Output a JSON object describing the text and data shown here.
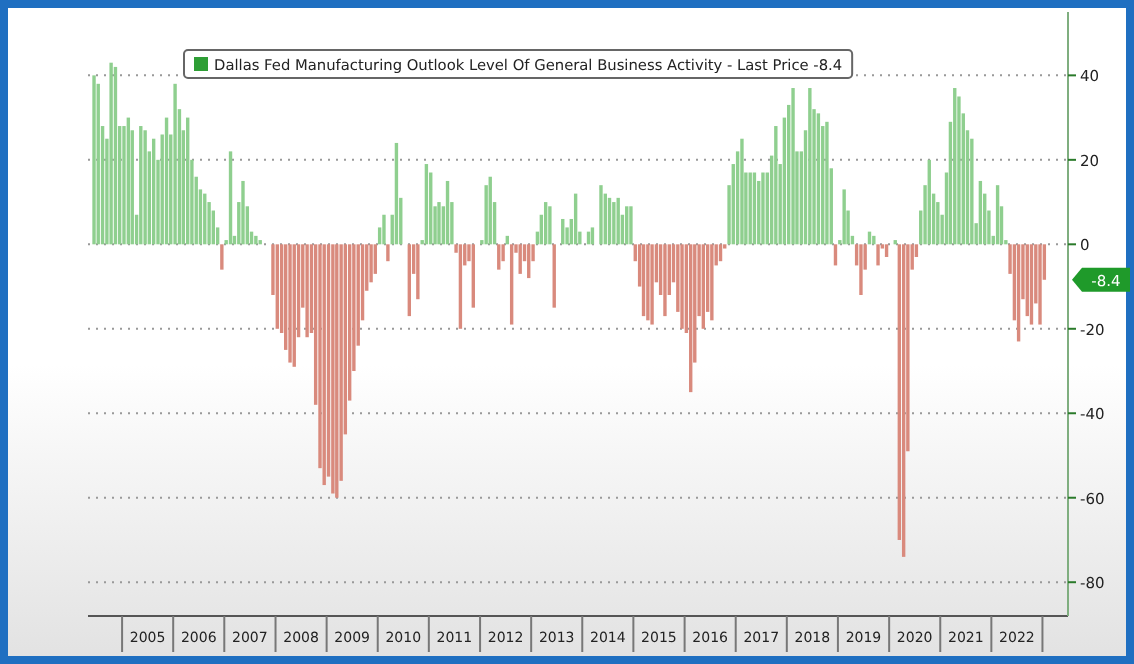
{
  "chart_data": {
    "type": "bar",
    "legend": "top",
    "grid": "y",
    "x": [
      "2004-06",
      "2004-07",
      "2004-08",
      "2004-09",
      "2004-10",
      "2004-11",
      "2004-12",
      "2005-01",
      "2005-02",
      "2005-03",
      "2005-04",
      "2005-05",
      "2005-06",
      "2005-07",
      "2005-08",
      "2005-09",
      "2005-10",
      "2005-11",
      "2005-12",
      "2006-01",
      "2006-02",
      "2006-03",
      "2006-04",
      "2006-05",
      "2006-06",
      "2006-07",
      "2006-08",
      "2006-09",
      "2006-10",
      "2006-11",
      "2006-12",
      "2007-01",
      "2007-02",
      "2007-03",
      "2007-04",
      "2007-05",
      "2007-06",
      "2007-07",
      "2007-08",
      "2007-09",
      "2007-10",
      "2007-11",
      "2007-12",
      "2008-01",
      "2008-02",
      "2008-03",
      "2008-04",
      "2008-05",
      "2008-06",
      "2008-07",
      "2008-08",
      "2008-09",
      "2008-10",
      "2008-11",
      "2008-12",
      "2009-01",
      "2009-02",
      "2009-03",
      "2009-04",
      "2009-05",
      "2009-06",
      "2009-07",
      "2009-08",
      "2009-09",
      "2009-10",
      "2009-11",
      "2009-12",
      "2010-01",
      "2010-02",
      "2010-03",
      "2010-04",
      "2010-05",
      "2010-06",
      "2010-07",
      "2010-08",
      "2010-09",
      "2010-10",
      "2010-11",
      "2010-12",
      "2011-01",
      "2011-02",
      "2011-03",
      "2011-04",
      "2011-05",
      "2011-06",
      "2011-07",
      "2011-08",
      "2011-09",
      "2011-10",
      "2011-11",
      "2011-12",
      "2012-01",
      "2012-02",
      "2012-03",
      "2012-04",
      "2012-05",
      "2012-06",
      "2012-07",
      "2012-08",
      "2012-09",
      "2012-10",
      "2012-11",
      "2012-12",
      "2013-01",
      "2013-02",
      "2013-03",
      "2013-04",
      "2013-05",
      "2013-06",
      "2013-07",
      "2013-08",
      "2013-09",
      "2013-10",
      "2013-11",
      "2013-12",
      "2014-01",
      "2014-02",
      "2014-03",
      "2014-04",
      "2014-05",
      "2014-06",
      "2014-07",
      "2014-08",
      "2014-09",
      "2014-10",
      "2014-11",
      "2014-12",
      "2015-01",
      "2015-02",
      "2015-03",
      "2015-04",
      "2015-05",
      "2015-06",
      "2015-07",
      "2015-08",
      "2015-09",
      "2015-10",
      "2015-11",
      "2015-12",
      "2016-01",
      "2016-02",
      "2016-03",
      "2016-04",
      "2016-05",
      "2016-06",
      "2016-07",
      "2016-08",
      "2016-09",
      "2016-10",
      "2016-11",
      "2016-12",
      "2017-01",
      "2017-02",
      "2017-03",
      "2017-04",
      "2017-05",
      "2017-06",
      "2017-07",
      "2017-08",
      "2017-09",
      "2017-10",
      "2017-11",
      "2017-12",
      "2018-01",
      "2018-02",
      "2018-03",
      "2018-04",
      "2018-05",
      "2018-06",
      "2018-07",
      "2018-08",
      "2018-09",
      "2018-10",
      "2018-11",
      "2018-12",
      "2019-01",
      "2019-02",
      "2019-03",
      "2019-04",
      "2019-05",
      "2019-06",
      "2019-07",
      "2019-08",
      "2019-09",
      "2019-10",
      "2019-11",
      "2019-12",
      "2020-01",
      "2020-02",
      "2020-03",
      "2020-04",
      "2020-05",
      "2020-06",
      "2020-07",
      "2020-08",
      "2020-09",
      "2020-10",
      "2020-11",
      "2020-12",
      "2021-01",
      "2021-02",
      "2021-03",
      "2021-04",
      "2021-05",
      "2021-06",
      "2021-07",
      "2021-08",
      "2021-09",
      "2021-10",
      "2021-11",
      "2021-12",
      "2022-01",
      "2022-02",
      "2022-03",
      "2022-04",
      "2022-05",
      "2022-06",
      "2022-07",
      "2022-08",
      "2022-09",
      "2022-10",
      "2022-11",
      "2022-12",
      "2023-01"
    ],
    "series": [
      {
        "name": "Dallas Fed Manufacturing Outlook Level Of General Business Activity - Last Price -8.4",
        "color": "#2e9e35",
        "values": [
          40,
          38,
          28,
          25,
          43,
          42,
          28,
          28,
          30,
          27,
          7,
          28,
          27,
          22,
          25,
          20,
          26,
          30,
          26,
          38,
          32,
          27,
          30,
          20,
          16,
          13,
          12,
          10,
          8,
          4,
          -6,
          1,
          22,
          2,
          10,
          15,
          9,
          3,
          2,
          1,
          0,
          0,
          -12,
          -20,
          -21,
          -25,
          -28,
          -29,
          -22,
          -15,
          -22,
          -21,
          -38,
          -53,
          -57,
          -55,
          -59,
          -60,
          -56,
          -45,
          -37,
          -30,
          -24,
          -18,
          -11,
          -9,
          -7,
          4,
          7,
          -4,
          7,
          24,
          11,
          0,
          -17,
          -7,
          -13,
          1,
          19,
          17,
          9,
          10,
          9,
          15,
          10,
          -2,
          -20,
          -5,
          -4,
          -15,
          0,
          1,
          14,
          16,
          10,
          -6,
          -4,
          2,
          -19,
          -2,
          -7,
          -4,
          -8,
          -4,
          3,
          7,
          10,
          9,
          -15,
          0,
          6,
          4,
          6,
          12,
          3,
          0,
          3,
          4,
          0,
          14,
          12,
          11,
          10,
          11,
          7,
          9,
          9,
          -4,
          -10,
          -17,
          -18,
          -19,
          -9,
          -12,
          -17,
          -12,
          -9,
          -16,
          -20,
          -21,
          -35,
          -28,
          -17,
          -20,
          -16,
          -18,
          -5,
          -4,
          -1,
          14,
          19,
          22,
          25,
          17,
          17,
          17,
          15,
          17,
          17,
          21,
          28,
          19,
          30,
          33,
          37,
          22,
          22,
          27,
          37,
          32,
          31,
          28,
          29,
          18,
          -5,
          1,
          13,
          8,
          2,
          -5,
          -12,
          -6,
          3,
          2,
          -5,
          -1,
          -3,
          0,
          1,
          -70,
          -74,
          -49,
          -6,
          -3,
          8,
          14,
          20,
          12,
          10,
          7,
          17,
          29,
          37,
          35,
          31,
          27,
          25,
          5,
          15,
          12,
          8,
          2,
          14,
          9,
          1,
          -7,
          -18,
          -23,
          -13,
          -17,
          -19,
          -14,
          -19,
          -8.4
        ],
        "colors": [
          "#8fcf8f",
          "#8fcf8f",
          "#8fcf8f",
          "#8fcf8f",
          "#8fcf8f",
          "#8fcf8f",
          "#8fcf8f",
          "#8fcf8f",
          "#8fcf8f",
          "#8fcf8f",
          "#8fcf8f",
          "#8fcf8f",
          "#8fcf8f",
          "#8fcf8f",
          "#8fcf8f",
          "#8fcf8f",
          "#8fcf8f",
          "#8fcf8f",
          "#8fcf8f",
          "#8fcf8f",
          "#8fcf8f",
          "#8fcf8f",
          "#8fcf8f",
          "#8fcf8f",
          "#8fcf8f",
          "#8fcf8f",
          "#8fcf8f",
          "#8fcf8f",
          "#8fcf8f",
          "#8fcf8f",
          "#d98a7d",
          "#8fcf8f",
          "#8fcf8f",
          "#8fcf8f",
          "#8fcf8f",
          "#8fcf8f",
          "#8fcf8f",
          "#8fcf8f",
          "#8fcf8f",
          "#8fcf8f",
          "#8fcf8f",
          "#8fcf8f",
          "#d98a7d",
          "#d98a7d",
          "#d98a7d",
          "#d98a7d",
          "#d98a7d",
          "#d98a7d",
          "#d98a7d",
          "#d98a7d",
          "#d98a7d",
          "#d98a7d",
          "#d98a7d",
          "#d98a7d",
          "#d98a7d",
          "#d98a7d",
          "#d98a7d",
          "#d98a7d",
          "#d98a7d",
          "#d98a7d",
          "#d98a7d",
          "#d98a7d",
          "#d98a7d",
          "#d98a7d",
          "#d98a7d",
          "#d98a7d",
          "#d98a7d",
          "#8fcf8f",
          "#8fcf8f",
          "#d98a7d",
          "#8fcf8f",
          "#8fcf8f",
          "#8fcf8f",
          "#8fcf8f",
          "#d98a7d",
          "#d98a7d",
          "#d98a7d",
          "#8fcf8f",
          "#8fcf8f",
          "#8fcf8f",
          "#8fcf8f",
          "#8fcf8f",
          "#8fcf8f",
          "#8fcf8f",
          "#8fcf8f",
          "#d98a7d",
          "#d98a7d",
          "#d98a7d",
          "#d98a7d",
          "#d98a7d",
          "#8fcf8f",
          "#8fcf8f",
          "#8fcf8f",
          "#8fcf8f",
          "#8fcf8f",
          "#d98a7d",
          "#d98a7d",
          "#8fcf8f",
          "#d98a7d",
          "#d98a7d",
          "#d98a7d",
          "#d98a7d",
          "#d98a7d",
          "#d98a7d",
          "#8fcf8f",
          "#8fcf8f",
          "#8fcf8f",
          "#8fcf8f",
          "#d98a7d",
          "#8fcf8f",
          "#8fcf8f",
          "#8fcf8f",
          "#8fcf8f",
          "#8fcf8f",
          "#8fcf8f",
          "#8fcf8f",
          "#8fcf8f",
          "#8fcf8f",
          "#8fcf8f",
          "#8fcf8f",
          "#8fcf8f",
          "#8fcf8f",
          "#8fcf8f",
          "#8fcf8f",
          "#8fcf8f",
          "#8fcf8f",
          "#8fcf8f",
          "#d98a7d",
          "#d98a7d",
          "#d98a7d",
          "#d98a7d",
          "#d98a7d",
          "#d98a7d",
          "#d98a7d",
          "#d98a7d",
          "#d98a7d",
          "#d98a7d",
          "#d98a7d",
          "#d98a7d",
          "#d98a7d",
          "#d98a7d",
          "#d98a7d",
          "#d98a7d",
          "#d98a7d",
          "#d98a7d",
          "#d98a7d",
          "#d98a7d",
          "#d98a7d",
          "#d98a7d",
          "#8fcf8f",
          "#8fcf8f",
          "#8fcf8f",
          "#8fcf8f",
          "#8fcf8f",
          "#8fcf8f",
          "#8fcf8f",
          "#8fcf8f",
          "#8fcf8f",
          "#8fcf8f",
          "#8fcf8f",
          "#8fcf8f",
          "#8fcf8f",
          "#8fcf8f",
          "#8fcf8f",
          "#8fcf8f",
          "#8fcf8f",
          "#8fcf8f",
          "#8fcf8f",
          "#8fcf8f",
          "#8fcf8f",
          "#8fcf8f",
          "#8fcf8f",
          "#8fcf8f",
          "#8fcf8f",
          "#d98a7d",
          "#8fcf8f",
          "#8fcf8f",
          "#8fcf8f",
          "#8fcf8f",
          "#d98a7d",
          "#d98a7d",
          "#d98a7d",
          "#8fcf8f",
          "#8fcf8f",
          "#d98a7d",
          "#d98a7d",
          "#d98a7d",
          "#8fcf8f",
          "#8fcf8f",
          "#d98a7d",
          "#d98a7d",
          "#d98a7d",
          "#d98a7d",
          "#d98a7d",
          "#8fcf8f",
          "#8fcf8f",
          "#8fcf8f",
          "#8fcf8f",
          "#8fcf8f",
          "#8fcf8f",
          "#8fcf8f",
          "#8fcf8f",
          "#8fcf8f",
          "#8fcf8f",
          "#8fcf8f",
          "#8fcf8f",
          "#8fcf8f",
          "#8fcf8f",
          "#8fcf8f",
          "#8fcf8f",
          "#8fcf8f",
          "#8fcf8f",
          "#8fcf8f",
          "#8fcf8f",
          "#8fcf8f",
          "#d98a7d",
          "#d98a7d",
          "#d98a7d",
          "#d98a7d",
          "#d98a7d",
          "#d98a7d",
          "#d98a7d",
          "#d98a7d",
          "#d98a7d"
        ]
      }
    ],
    "xlim": [
      "2004-05",
      "2023-07"
    ],
    "xticks": [
      {
        "value": "2005-07",
        "label": "2005"
      },
      {
        "value": "2006-07",
        "label": "2006"
      },
      {
        "value": "2007-07",
        "label": "2007"
      },
      {
        "value": "2008-07",
        "label": "2008"
      },
      {
        "value": "2009-07",
        "label": "2009"
      },
      {
        "value": "2010-07",
        "label": "2010"
      },
      {
        "value": "2011-07",
        "label": "2011"
      },
      {
        "value": "2012-07",
        "label": "2012"
      },
      {
        "value": "2013-07",
        "label": "2013"
      },
      {
        "value": "2014-07",
        "label": "2014"
      },
      {
        "value": "2015-07",
        "label": "2015"
      },
      {
        "value": "2016-07",
        "label": "2016"
      },
      {
        "value": "2017-07",
        "label": "2017"
      },
      {
        "value": "2018-07",
        "label": "2018"
      },
      {
        "value": "2019-07",
        "label": "2019"
      },
      {
        "value": "2020-07",
        "label": "2020"
      },
      {
        "value": "2021-07",
        "label": "2021"
      },
      {
        "value": "2022-07",
        "label": "2022"
      }
    ],
    "ylim": [
      -88,
      55
    ],
    "yticks": [
      -80,
      -60,
      -40,
      -20,
      0,
      20,
      40
    ],
    "annotations": [
      "-8.4"
    ]
  }
}
